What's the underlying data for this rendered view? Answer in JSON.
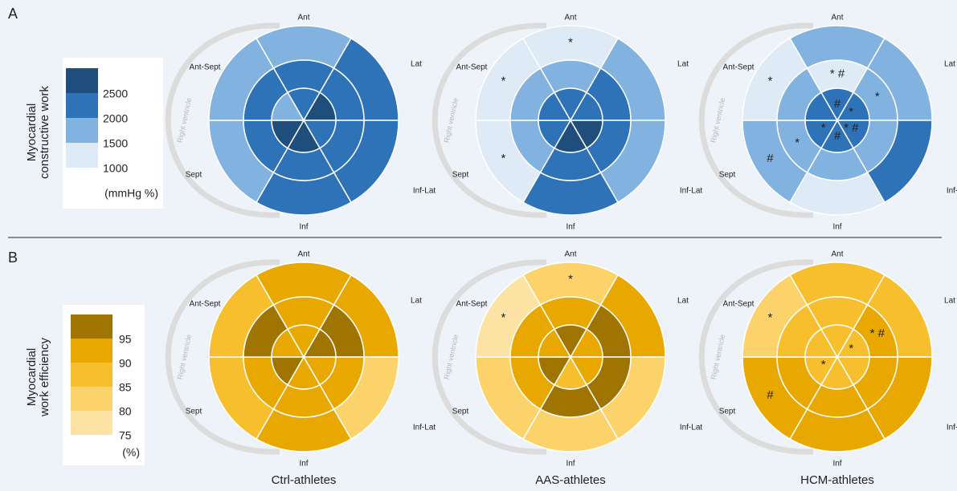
{
  "chart_data": [
    {
      "type": "bullseye",
      "panel_label": "A",
      "title": [
        "Myocardial",
        "constructive work"
      ],
      "colorbar": {
        "colors": [
          "#deeaf6",
          "#82b2e0",
          "#2e72b8",
          "#1f4e7d"
        ],
        "clim": [
          1000,
          3000
        ],
        "ticks": [
          2500,
          2000,
          1500,
          1000
        ],
        "unit": "(mmHg %)"
      },
      "segments": [
        "Ant",
        "Lat",
        "Inf-Lat",
        "Inf",
        "Sept",
        "Ant-Sept"
      ],
      "rv_label": "Right ventricle",
      "panels": [
        {
          "rings": [
            [
              1750,
              2250,
              2250,
              2250,
              1750,
              1750
            ],
            [
              2250,
              2250,
              2250,
              2250,
              2250,
              2250
            ],
            [
              2250,
              2750,
              2250,
              2750,
              2750,
              1750
            ]
          ],
          "annotations": [
            [
              null,
              null,
              null,
              null,
              null,
              null
            ],
            [
              null,
              null,
              null,
              null,
              null,
              null
            ],
            [
              null,
              null,
              null,
              null,
              null,
              null
            ]
          ]
        },
        {
          "rings": [
            [
              1250,
              1750,
              1750,
              2250,
              1250,
              1250
            ],
            [
              1750,
              2250,
              2250,
              2250,
              1750,
              1750
            ],
            [
              2250,
              2250,
              2750,
              2750,
              2250,
              2250
            ]
          ],
          "annotations": [
            [
              "*",
              null,
              null,
              null,
              "*",
              "*"
            ],
            [
              null,
              null,
              null,
              null,
              null,
              null
            ],
            [
              null,
              null,
              null,
              null,
              null,
              null
            ]
          ]
        },
        {
          "rings": [
            [
              1750,
              1750,
              2250,
              1250,
              1750,
              1250
            ],
            [
              1250,
              1750,
              1750,
              1750,
              1750,
              1750
            ],
            [
              2250,
              2250,
              2250,
              2250,
              2250,
              2250
            ]
          ],
          "annotations": [
            [
              null,
              null,
              null,
              null,
              "#",
              "*"
            ],
            [
              "* #",
              "*",
              null,
              null,
              "*",
              null
            ],
            [
              "#",
              "*",
              "* #",
              "#",
              "*",
              null
            ]
          ]
        }
      ]
    },
    {
      "type": "bullseye",
      "panel_label": "B",
      "title": [
        "Myocardial",
        "work efficiency"
      ],
      "colorbar": {
        "colors": [
          "#fde3a3",
          "#fbd36a",
          "#f7bf2e",
          "#e8a800",
          "#a07400"
        ],
        "clim": [
          75,
          100
        ],
        "ticks": [
          95,
          90,
          85,
          80,
          75
        ],
        "unit": "(%)"
      },
      "segments": [
        "Ant",
        "Lat",
        "Inf-Lat",
        "Inf",
        "Sept",
        "Ant-Sept"
      ],
      "rv_label": "Right ventricle",
      "panels": [
        {
          "rings": [
            [
              92.5,
              92.5,
              82.5,
              92.5,
              87.5,
              87.5
            ],
            [
              92.5,
              97.5,
              92.5,
              92.5,
              92.5,
              97.5
            ],
            [
              92.5,
              97.5,
              92.5,
              92.5,
              97.5,
              92.5
            ]
          ],
          "annotations": [
            [
              null,
              null,
              null,
              null,
              null,
              null
            ],
            [
              null,
              null,
              null,
              null,
              null,
              null
            ],
            [
              null,
              null,
              null,
              null,
              null,
              null
            ]
          ]
        },
        {
          "rings": [
            [
              82.5,
              92.5,
              82.5,
              82.5,
              82.5,
              77.5
            ],
            [
              92.5,
              97.5,
              97.5,
              97.5,
              92.5,
              92.5
            ],
            [
              97.5,
              92.5,
              92.5,
              87.5,
              97.5,
              92.5
            ]
          ],
          "annotations": [
            [
              "*",
              null,
              null,
              null,
              null,
              "*"
            ],
            [
              null,
              null,
              null,
              null,
              null,
              null
            ],
            [
              null,
              null,
              null,
              null,
              null,
              null
            ]
          ]
        },
        {
          "rings": [
            [
              87.5,
              87.5,
              92.5,
              92.5,
              92.5,
              82.5
            ],
            [
              87.5,
              92.5,
              92.5,
              92.5,
              92.5,
              87.5
            ],
            [
              87.5,
              87.5,
              87.5,
              87.5,
              87.5,
              87.5
            ]
          ],
          "annotations": [
            [
              null,
              null,
              null,
              null,
              "#",
              "*"
            ],
            [
              null,
              "* #",
              null,
              null,
              null,
              null
            ],
            [
              null,
              "*",
              null,
              null,
              "*",
              null
            ]
          ]
        }
      ]
    }
  ],
  "groups": [
    "Ctrl-athletes",
    "AAS-athletes",
    "HCM-athletes"
  ]
}
